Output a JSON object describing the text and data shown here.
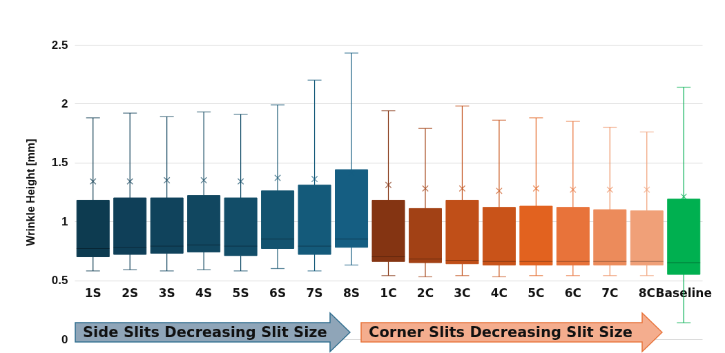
{
  "chart_data": {
    "type": "box",
    "ylabel": "Wrinkle Height [mm]",
    "categories": [
      "1S",
      "2S",
      "3S",
      "4S",
      "5S",
      "6S",
      "7S",
      "8S",
      "1C",
      "2C",
      "3C",
      "4C",
      "5C",
      "6C",
      "7C",
      "8C",
      "Baseline"
    ],
    "colors": [
      "#0d3b50",
      "#0f3f58",
      "#10435c",
      "#114760",
      "#124d68",
      "#13536f",
      "#145a7a",
      "#155e82",
      "#843412",
      "#a24115",
      "#c04f18",
      "#c95319",
      "#e2621f",
      "#e8733a",
      "#ec8b5b",
      "#f0a078",
      "#00b050"
    ],
    "boxes": [
      {
        "low": 0.58,
        "q1": 0.7,
        "median": 0.77,
        "q3": 1.18,
        "high": 1.88,
        "mean": 1.34
      },
      {
        "low": 0.59,
        "q1": 0.72,
        "median": 0.78,
        "q3": 1.2,
        "high": 1.92,
        "mean": 1.34
      },
      {
        "low": 0.58,
        "q1": 0.73,
        "median": 0.79,
        "q3": 1.2,
        "high": 1.89,
        "mean": 1.35
      },
      {
        "low": 0.59,
        "q1": 0.74,
        "median": 0.8,
        "q3": 1.22,
        "high": 1.93,
        "mean": 1.35
      },
      {
        "low": 0.58,
        "q1": 0.71,
        "median": 0.79,
        "q3": 1.2,
        "high": 1.91,
        "mean": 1.34
      },
      {
        "low": 0.6,
        "q1": 0.77,
        "median": 0.85,
        "q3": 1.26,
        "high": 1.99,
        "mean": 1.37
      },
      {
        "low": 0.58,
        "q1": 0.72,
        "median": 0.79,
        "q3": 1.31,
        "high": 2.2,
        "mean": 1.36
      },
      {
        "low": 0.63,
        "q1": 0.78,
        "median": 0.85,
        "q3": 1.44,
        "high": 2.43,
        "mean": 1.41
      },
      {
        "low": 0.54,
        "q1": 0.66,
        "median": 0.7,
        "q3": 1.18,
        "high": 1.94,
        "mean": 1.31
      },
      {
        "low": 0.53,
        "q1": 0.65,
        "median": 0.68,
        "q3": 1.11,
        "high": 1.79,
        "mean": 1.28
      },
      {
        "low": 0.54,
        "q1": 0.64,
        "median": 0.67,
        "q3": 1.18,
        "high": 1.98,
        "mean": 1.28
      },
      {
        "low": 0.53,
        "q1": 0.63,
        "median": 0.66,
        "q3": 1.12,
        "high": 1.86,
        "mean": 1.26
      },
      {
        "low": 0.54,
        "q1": 0.63,
        "median": 0.66,
        "q3": 1.13,
        "high": 1.88,
        "mean": 1.28
      },
      {
        "low": 0.54,
        "q1": 0.63,
        "median": 0.66,
        "q3": 1.12,
        "high": 1.85,
        "mean": 1.27
      },
      {
        "low": 0.54,
        "q1": 0.63,
        "median": 0.66,
        "q3": 1.1,
        "high": 1.8,
        "mean": 1.27
      },
      {
        "low": 0.54,
        "q1": 0.63,
        "median": 0.66,
        "q3": 1.09,
        "high": 1.76,
        "mean": 1.27
      },
      {
        "low": 0.14,
        "q1": 0.55,
        "median": 0.65,
        "q3": 1.19,
        "high": 2.14,
        "mean": 1.21
      }
    ],
    "ylim": [
      0,
      2.5
    ],
    "yticks": [
      0,
      0.5,
      1,
      1.5,
      2,
      2.5
    ],
    "grid": "y",
    "marker": "cross",
    "annotations": [
      "Side Slits Decreasing Slit Size",
      "Corner Slits Decreasing Slit Size"
    ]
  }
}
